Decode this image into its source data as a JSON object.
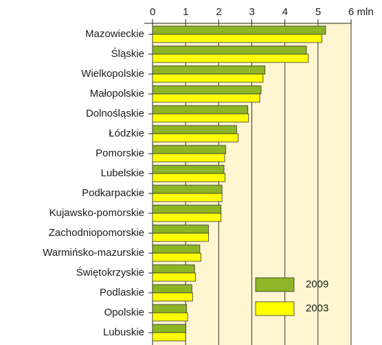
{
  "chart_data": {
    "type": "hbar",
    "categories": [
      "Mazowieckie",
      "Śląskie",
      "Wielkopolskie",
      "Małopolskie",
      "Dolnośląskie",
      "Łódzkie",
      "Pomorskie",
      "Lubelskie",
      "Podkarpackie",
      "Kujawsko-pomorskie",
      "Zachodniopomorskie",
      "Warmińsko-mazurskie",
      "Świętokrzyskie",
      "Podlaskie",
      "Opolskie",
      "Lubuskie"
    ],
    "series": [
      {
        "name": "2009",
        "color": "#8db525",
        "values": [
          5.23,
          4.65,
          3.4,
          3.28,
          2.88,
          2.54,
          2.21,
          2.16,
          2.1,
          2.07,
          1.69,
          1.43,
          1.27,
          1.19,
          1.03,
          1.01
        ]
      },
      {
        "name": "2003",
        "color": "#ffff00",
        "values": [
          5.12,
          4.71,
          3.34,
          3.24,
          2.9,
          2.59,
          2.18,
          2.19,
          2.1,
          2.07,
          1.69,
          1.46,
          1.3,
          1.21,
          1.06,
          1.0
        ]
      }
    ],
    "xlim": [
      0,
      6
    ],
    "xticks": [
      0,
      1,
      2,
      3,
      4,
      5,
      {
        "value": 6,
        "label": "6 mln"
      }
    ],
    "grid": true,
    "legend": "lower right",
    "plot_background": "#fdf6d0"
  }
}
